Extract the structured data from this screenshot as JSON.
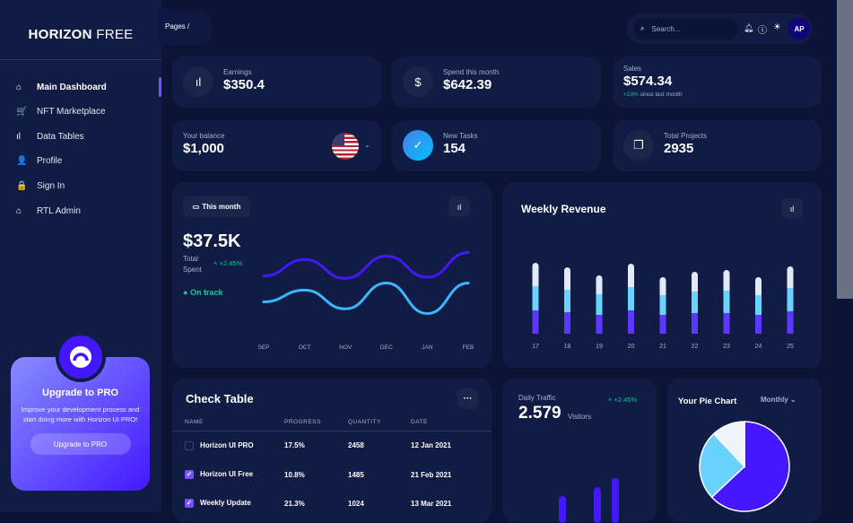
{
  "brand": {
    "bold": "HORIZON",
    "light": " FREE"
  },
  "breadcrumb": "Pages  /",
  "sidebar": {
    "items": [
      {
        "label": "Main Dashboard",
        "icon": "home-icon",
        "glyph": "⌂"
      },
      {
        "label": "NFT Marketplace",
        "icon": "cart-icon",
        "glyph": "🛒"
      },
      {
        "label": "Data Tables",
        "icon": "bar-chart-icon",
        "glyph": "ıl"
      },
      {
        "label": "Profile",
        "icon": "person-icon",
        "glyph": "👤"
      },
      {
        "label": "Sign In",
        "icon": "lock-icon",
        "glyph": "🔒"
      },
      {
        "label": "RTL Admin",
        "icon": "home-icon",
        "glyph": "⌂"
      }
    ]
  },
  "promo": {
    "title": "Upgrade to PRO",
    "text": "Improve your development process and start doing more with Horizon UI PRO!",
    "button": "Upgrade to PRO"
  },
  "header": {
    "search_placeholder": "Search...",
    "avatar": "AP"
  },
  "stats": [
    {
      "label": "Earnings",
      "value": "$350.4",
      "icon": "bar-chart-icon"
    },
    {
      "label": "Spend this month",
      "value": "$642.39",
      "icon": "dollar-icon"
    },
    {
      "label": "Sales",
      "value": "$574.34",
      "change": "+23%",
      "change_text": "since last month"
    },
    {
      "label": "Your balance",
      "value": "$1,000",
      "icon": "us-flag-icon"
    },
    {
      "label": "New Tasks",
      "value": "154",
      "icon": "add-task-icon"
    },
    {
      "label": "Total Projects",
      "value": "2935",
      "icon": "file-copy-icon"
    }
  ],
  "total_spent": {
    "period": "This month",
    "value": "$37.5K",
    "label": "Total Spent",
    "change": "+2.45%",
    "status": "On track"
  },
  "chart_data": [
    {
      "type": "line",
      "categories": [
        "SEP",
        "OCT",
        "NOV",
        "DEC",
        "JAN",
        "FEB"
      ],
      "series": [
        {
          "values": [
            50,
            64,
            48,
            67,
            49,
            70
          ],
          "color": "#4318ff"
        },
        {
          "values": [
            28,
            38,
            22,
            44,
            18,
            44
          ],
          "color": "#39b8ff"
        }
      ]
    },
    {
      "type": "bar",
      "stacked": true,
      "title": "Weekly Revenue",
      "categories": [
        "17",
        "18",
        "19",
        "20",
        "21",
        "22",
        "23",
        "24",
        "25"
      ],
      "series": [
        {
          "values": [
            26,
            24,
            21,
            26,
            21,
            23,
            23,
            21,
            25
          ],
          "color": "#5e37ff"
        },
        {
          "values": [
            27,
            25,
            23,
            26,
            22,
            24,
            25,
            22,
            26
          ],
          "color": "#6ad2ff"
        },
        {
          "values": [
            26,
            25,
            21,
            26,
            20,
            22,
            23,
            20,
            24
          ],
          "color": "#e1e9f8"
        }
      ]
    },
    {
      "type": "pie",
      "title": "Your Pie Chart",
      "period": "Monthly",
      "values": [
        63,
        25,
        12
      ],
      "colors": [
        "#4318ff",
        "#6ad2ff",
        "#eff4fb"
      ]
    }
  ],
  "check_table": {
    "title": "Check Table",
    "columns": [
      "NAME",
      "PROGRESS",
      "QUANTITY",
      "DATE"
    ],
    "rows": [
      {
        "checked": false,
        "name": "Horizon UI PRO",
        "progress": "17.5%",
        "quantity": "2458",
        "date": "12 Jan 2021"
      },
      {
        "checked": true,
        "name": "Horizon UI Free",
        "progress": "10.8%",
        "quantity": "1485",
        "date": "21 Feb 2021"
      },
      {
        "checked": true,
        "name": "Weekly Update",
        "progress": "21.3%",
        "quantity": "1024",
        "date": "13 Mar 2021"
      }
    ]
  },
  "daily_traffic": {
    "label": "Daily Traffic",
    "value": "2.579",
    "unit": "Visitors",
    "change": "+2.45%"
  }
}
